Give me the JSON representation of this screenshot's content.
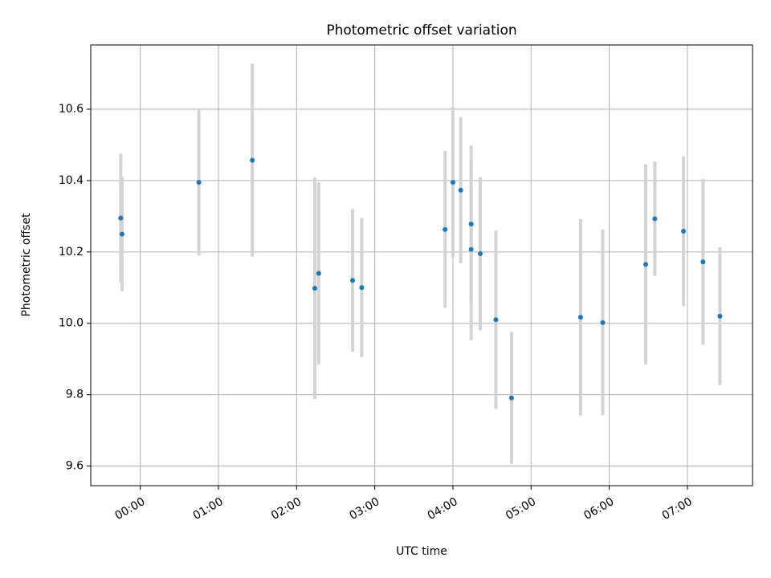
{
  "chart_data": {
    "type": "scatter",
    "title": "Photometric offset variation",
    "xlabel": "UTC time",
    "ylabel": "Photometric offset",
    "x_unit": "UTC time (HH:MM)",
    "xlim": [
      "-00:38",
      "07:50"
    ],
    "ylim": [
      9.545,
      10.78
    ],
    "x_ticks": [
      "00:00",
      "01:00",
      "02:00",
      "03:00",
      "04:00",
      "05:00",
      "06:00",
      "07:00"
    ],
    "y_ticks": [
      9.6,
      9.8,
      10.0,
      10.2,
      10.4,
      10.6
    ],
    "y_tick_labels": [
      "9.6",
      "9.8",
      "10.0",
      "10.2",
      "10.4",
      "10.6"
    ],
    "grid": true,
    "legend": "none",
    "series": [
      {
        "marker_color": "#1f77b4",
        "errorbar_color": "#d3d3d3",
        "points": [
          {
            "x": "-00:15",
            "y": 10.295,
            "err": 0.18
          },
          {
            "x": "-00:14",
            "y": 10.25,
            "err": 0.16
          },
          {
            "x": "00:45",
            "y": 10.395,
            "err": 0.205
          },
          {
            "x": "01:26",
            "y": 10.457,
            "err": 0.27
          },
          {
            "x": "02:14",
            "y": 10.098,
            "err": 0.31
          },
          {
            "x": "02:17",
            "y": 10.14,
            "err": 0.255
          },
          {
            "x": "02:43",
            "y": 10.12,
            "err": 0.2
          },
          {
            "x": "02:50",
            "y": 10.1,
            "err": 0.195
          },
          {
            "x": "03:54",
            "y": 10.263,
            "err": 0.22
          },
          {
            "x": "04:00",
            "y": 10.395,
            "err": 0.21
          },
          {
            "x": "04:06",
            "y": 10.373,
            "err": 0.205
          },
          {
            "x": "04:14",
            "y": 10.207,
            "err": 0.255
          },
          {
            "x": "04:14",
            "y": 10.278,
            "err": 0.22
          },
          {
            "x": "04:21",
            "y": 10.195,
            "err": 0.215
          },
          {
            "x": "04:33",
            "y": 10.01,
            "err": 0.25
          },
          {
            "x": "04:45",
            "y": 9.791,
            "err": 0.185
          },
          {
            "x": "05:38",
            "y": 10.017,
            "err": 0.275
          },
          {
            "x": "05:55",
            "y": 10.002,
            "err": 0.26
          },
          {
            "x": "06:28",
            "y": 10.165,
            "err": 0.28
          },
          {
            "x": "06:35",
            "y": 10.293,
            "err": 0.16
          },
          {
            "x": "06:57",
            "y": 10.258,
            "err": 0.21
          },
          {
            "x": "07:12",
            "y": 10.172,
            "err": 0.232
          },
          {
            "x": "07:25",
            "y": 10.02,
            "err": 0.193
          }
        ]
      }
    ]
  }
}
